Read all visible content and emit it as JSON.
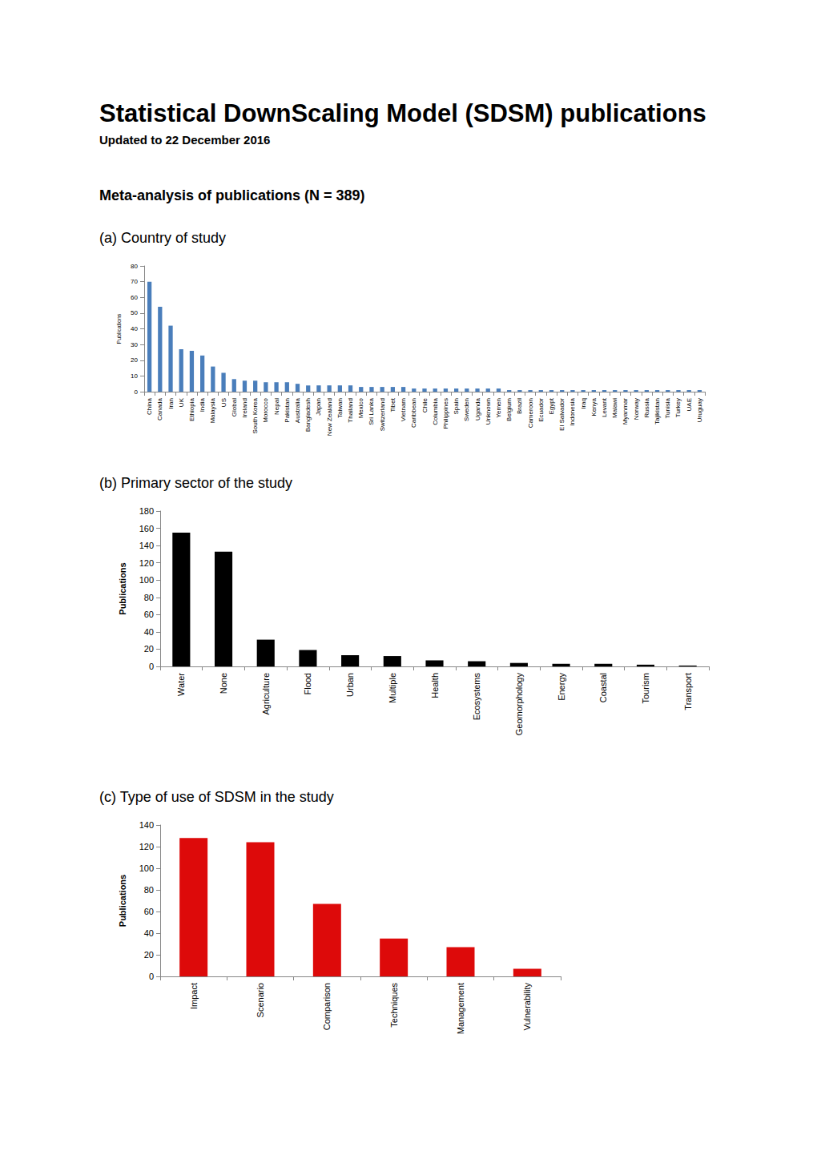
{
  "title": "Statistical DownScaling Model (SDSM) publications",
  "subtitle": "Updated to 22 December 2016",
  "heading": "Meta-analysis of publications (N = 389)",
  "chart_data": [
    {
      "type": "bar",
      "title": "(a) Country of study",
      "ylabel": "Publications",
      "categories": [
        "China",
        "Canada",
        "Iran",
        "UK",
        "Ethiopia",
        "India",
        "Malaysia",
        "US",
        "Global",
        "Ireland",
        "South Korea",
        "Morocco",
        "Nepal",
        "Pakistan",
        "Australia",
        "Bangladesh",
        "Japan",
        "New Zealand",
        "Taiwan",
        "Thailand",
        "Mexico",
        "Sri Lanka",
        "Switzerland",
        "Tibet",
        "Vietnam",
        "Caribbean",
        "Chile",
        "Columbia",
        "Philippines",
        "Spain",
        "Sweden",
        "Uganda",
        "Unknown",
        "Yemen",
        "Belgium",
        "Brazil",
        "Cameroon",
        "Ecuador",
        "Egypt",
        "El Salvador",
        "Indonesia",
        "Iraq",
        "Kenya",
        "Levant",
        "Malawi",
        "Myanmar",
        "Norway",
        "Russia",
        "Tajikistan",
        "Tunisia",
        "Turkey",
        "UAE",
        "Uruguay"
      ],
      "values": [
        70,
        54,
        42,
        27,
        26,
        23,
        16,
        12,
        8,
        7,
        7,
        6,
        6,
        6,
        5,
        4,
        4,
        4,
        4,
        4,
        3,
        3,
        3,
        3,
        3,
        2,
        2,
        2,
        2,
        2,
        2,
        2,
        2,
        2,
        1,
        1,
        1,
        1,
        1,
        1,
        1,
        1,
        1,
        1,
        1,
        1,
        1,
        1,
        1,
        1,
        1,
        1,
        1
      ],
      "color": "#4a7ebb",
      "ylim": [
        0,
        80
      ],
      "yticks": [
        0,
        10,
        20,
        30,
        40,
        50,
        60,
        70,
        80
      ],
      "grid": false
    },
    {
      "type": "bar",
      "title": "(b) Primary sector of the study",
      "ylabel": "Publications",
      "categories": [
        "Water",
        "None",
        "Agriculture",
        "Flood",
        "Urban",
        "Multiple",
        "Health",
        "Ecosystems",
        "Geomorphology",
        "Energy",
        "Coastal",
        "Tourism",
        "Transport"
      ],
      "values": [
        155,
        133,
        31,
        19,
        13,
        12,
        7,
        6,
        4,
        3,
        3,
        2,
        1
      ],
      "color": "#000000",
      "ylim": [
        0,
        180
      ],
      "yticks": [
        0,
        20,
        40,
        60,
        80,
        100,
        120,
        140,
        160,
        180
      ],
      "grid": false
    },
    {
      "type": "bar",
      "title": "(c) Type of use of SDSM in the study",
      "ylabel": "Publications",
      "categories": [
        "Impact",
        "Scenario",
        "Comparison",
        "Techniques",
        "Management",
        "Vulnerability"
      ],
      "values": [
        128,
        124,
        67,
        35,
        27,
        7
      ],
      "color": "#dd0a0a",
      "ylim": [
        0,
        140
      ],
      "yticks": [
        0,
        20,
        40,
        60,
        80,
        100,
        120,
        140
      ],
      "grid": false
    }
  ]
}
